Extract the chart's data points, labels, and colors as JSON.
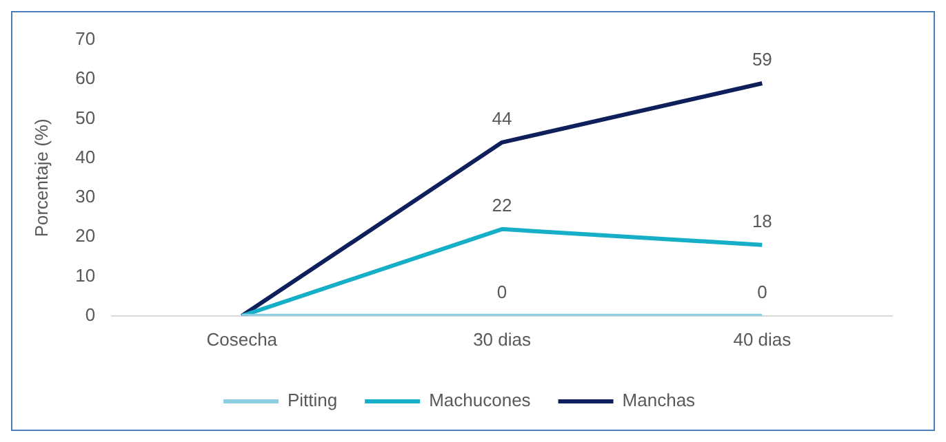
{
  "chart_data": {
    "type": "line",
    "ylabel": "Porcentaje (%)",
    "categories": [
      "Cosecha",
      "30 dias",
      "40 dias"
    ],
    "series": [
      {
        "name": "Pitting",
        "color": "#8ccfe0",
        "values": [
          0,
          0,
          0
        ],
        "value_labels": [
          null,
          "0",
          "0"
        ]
      },
      {
        "name": "Machucones",
        "color": "#17afc7",
        "values": [
          0,
          22,
          18
        ],
        "value_labels": [
          null,
          "22",
          "18"
        ]
      },
      {
        "name": "Manchas",
        "color": "#0e1f5b",
        "values": [
          0,
          44,
          59
        ],
        "value_labels": [
          null,
          "44",
          "59"
        ]
      }
    ],
    "ylim": [
      0,
      70
    ],
    "yticks": [
      0,
      10,
      20,
      30,
      40,
      50,
      60,
      70
    ],
    "grid": false,
    "legend": "bottom",
    "marker": "none",
    "line_style": "solid"
  }
}
